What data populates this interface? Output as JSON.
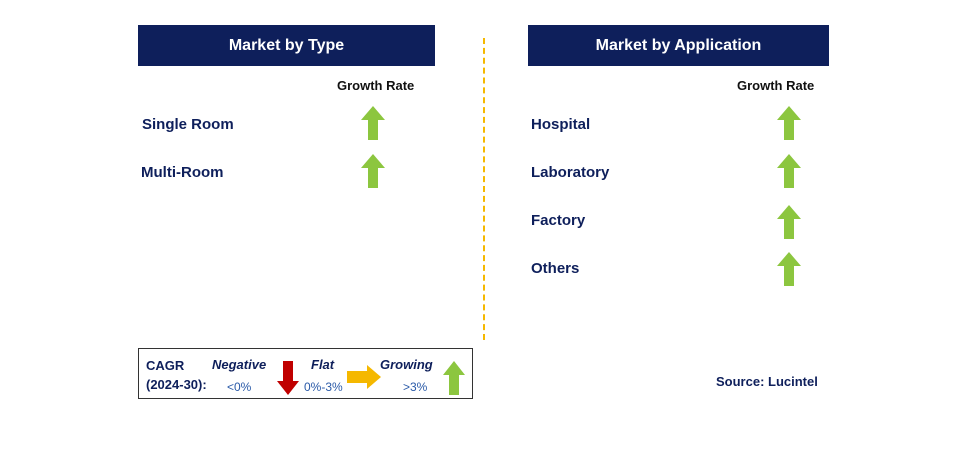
{
  "left": {
    "header": "Market by Type",
    "growth_rate_label": "Growth Rate",
    "items": [
      {
        "label": "Single Room",
        "trend": "growing"
      },
      {
        "label": "Multi-Room",
        "trend": "growing"
      }
    ]
  },
  "right": {
    "header": "Market by Application",
    "growth_rate_label": "Growth Rate",
    "items": [
      {
        "label": "Hospital",
        "trend": "growing"
      },
      {
        "label": "Laboratory",
        "trend": "growing"
      },
      {
        "label": "Factory",
        "trend": "growing"
      },
      {
        "label": "Others",
        "trend": "growing"
      }
    ]
  },
  "legend": {
    "cagr_line1": "CAGR",
    "cagr_line2": "(2024-30):",
    "negative": {
      "label": "Negative",
      "range": "<0%",
      "icon": "red-down-arrow-icon"
    },
    "flat": {
      "label": "Flat",
      "range": "0%-3%",
      "icon": "orange-right-arrow-icon"
    },
    "growing": {
      "label": "Growing",
      "range": ">3%",
      "icon": "green-up-arrow-icon"
    }
  },
  "source": "Source: Lucintel",
  "colors": {
    "header_bg": "#0e1f5b",
    "growing": "#8cc63f",
    "negative": "#c00000",
    "flat": "#f5b800",
    "divider": "#f5b800"
  }
}
